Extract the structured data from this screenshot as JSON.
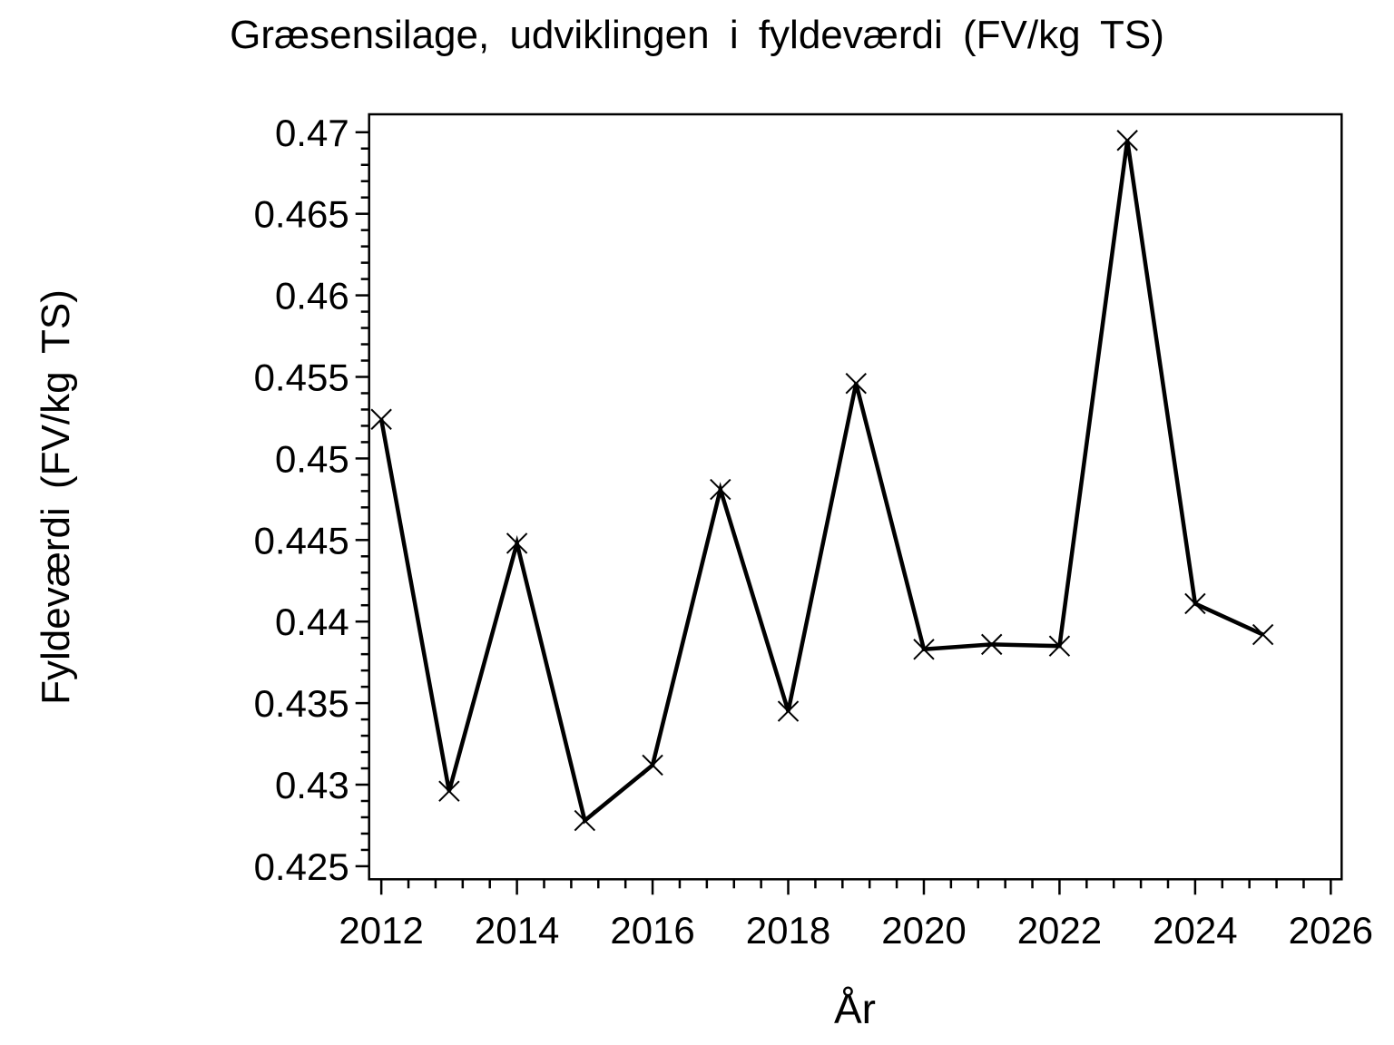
{
  "page": {
    "background_color": "#ffffff",
    "foreground_color": "#000000"
  },
  "chart_data": {
    "type": "line",
    "title": "Græsensilage, udviklingen i fyldeværdi (FV/kg TS)",
    "xlabel": "År",
    "ylabel": "Fyldeværdi (FV/kg TS)",
    "x": [
      2012,
      2013,
      2014,
      2015,
      2016,
      2017,
      2018,
      2019,
      2020,
      2021,
      2022,
      2023,
      2024,
      2025
    ],
    "values": [
      0.4524,
      0.4296,
      0.4448,
      0.4278,
      0.4312,
      0.4481,
      0.4345,
      0.4546,
      0.4383,
      0.4386,
      0.4385,
      0.4695,
      0.4411,
      0.4392
    ],
    "marker": "x",
    "line_color": "#000000",
    "grid": false,
    "legend": false,
    "xlim": [
      2011.82,
      2026.16
    ],
    "ylim": [
      0.4242,
      0.4711
    ],
    "x_ticks": {
      "major_start": 2012,
      "major_end": 2026,
      "major_step": 2,
      "minor_step": 0.4,
      "labels": [
        "2012",
        "2014",
        "2016",
        "2018",
        "2020",
        "2022",
        "2024",
        "2026"
      ]
    },
    "y_ticks": {
      "major_start": 0.425,
      "major_end": 0.47,
      "major_step": 0.005,
      "minor_step": 0.001,
      "labels": [
        "0.425",
        "0.43",
        "0.435",
        "0.44",
        "0.445",
        "0.45",
        "0.455",
        "0.46",
        "0.465",
        "0.47"
      ]
    }
  }
}
